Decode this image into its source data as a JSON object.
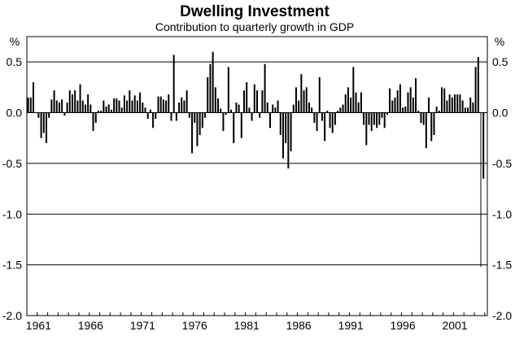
{
  "chart_data": {
    "type": "bar",
    "title": "Dwelling Investment",
    "subtitle": "Contribution to quarterly growth in GDP",
    "xlabel": "",
    "ylabel": "%",
    "right_ylabel": "%",
    "ylim": [
      -2.0,
      0.75
    ],
    "yticks": [
      0.5,
      0.0,
      -0.5,
      -1.0,
      -1.5,
      -2.0
    ],
    "ytick_labels": [
      "0.5",
      "0.0",
      "-0.5",
      "-1.0",
      "-1.5",
      "-2.0"
    ],
    "xtick_labels": [
      "1961",
      "1966",
      "1971",
      "1976",
      "1981",
      "1986",
      "1991",
      "1996",
      "2001"
    ],
    "x_start": "1960 Q1",
    "frequency": "quarterly",
    "bar_color": "#000000",
    "grid": true,
    "values": [
      0.15,
      0.15,
      0.3,
      0.0,
      -0.05,
      -0.25,
      -0.2,
      -0.3,
      -0.05,
      0.13,
      0.22,
      0.12,
      0.1,
      0.13,
      -0.03,
      0.1,
      0.22,
      0.18,
      0.22,
      0.12,
      0.28,
      0.12,
      0.08,
      0.18,
      0.08,
      -0.18,
      -0.1,
      0.02,
      0.02,
      0.12,
      0.06,
      0.08,
      0.03,
      0.14,
      0.14,
      0.12,
      0.05,
      0.17,
      0.12,
      0.22,
      0.12,
      0.17,
      0.12,
      0.2,
      0.1,
      0.05,
      -0.06,
      0.03,
      -0.15,
      -0.06,
      0.16,
      0.16,
      0.13,
      0.12,
      0.18,
      -0.08,
      0.57,
      -0.08,
      0.1,
      0.15,
      0.12,
      0.22,
      -0.05,
      -0.4,
      -0.1,
      -0.33,
      -0.22,
      -0.15,
      -0.05,
      0.35,
      0.48,
      0.6,
      0.25,
      0.14,
      0.04,
      -0.18,
      -0.02,
      0.45,
      0.03,
      -0.3,
      0.1,
      0.08,
      -0.25,
      0.22,
      0.3,
      0.05,
      -0.08,
      0.28,
      0.22,
      -0.05,
      0.22,
      0.48,
      0.1,
      -0.15,
      0.08,
      0.05,
      0.12,
      -0.22,
      -0.45,
      -0.3,
      -0.55,
      -0.38,
      0.08,
      0.25,
      0.12,
      0.38,
      0.22,
      0.25,
      0.1,
      0.05,
      -0.1,
      -0.18,
      0.35,
      -0.08,
      -0.28,
      0.02,
      -0.15,
      -0.2,
      -0.12,
      0.02,
      0.05,
      0.08,
      0.18,
      0.25,
      0.15,
      0.45,
      0.2,
      0.1,
      0.2,
      -0.12,
      -0.32,
      -0.12,
      -0.18,
      -0.12,
      -0.15,
      -0.12,
      -0.05,
      -0.15,
      -0.02,
      0.24,
      0.12,
      0.15,
      0.22,
      0.28,
      0.05,
      0.06,
      0.2,
      0.25,
      0.15,
      0.34,
      0.02,
      -0.1,
      -0.12,
      -0.35,
      0.15,
      -0.28,
      -0.22,
      0.06,
      0.02,
      0.25,
      0.24,
      0.12,
      0.18,
      0.15,
      0.18,
      0.18,
      0.18,
      0.12,
      0.05,
      0.05,
      0.15,
      0.1,
      0.45,
      0.55,
      -1.52,
      -0.65
    ]
  }
}
